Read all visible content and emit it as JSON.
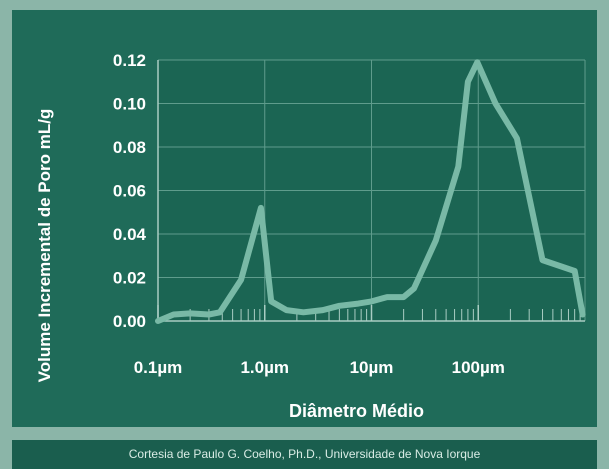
{
  "chart_data": {
    "type": "line",
    "xlabel": "Diâmetro Médio",
    "ylabel": "Volume Incremental de Poro mL/g",
    "x_scale": "log",
    "xlim": [
      0.1,
      1000
    ],
    "ylim": [
      0,
      0.12
    ],
    "y_ticks": [
      "0.00",
      "0.02",
      "0.04",
      "0.06",
      "0.08",
      "0.10",
      "0.12"
    ],
    "x_tick_labels": [
      {
        "value": 0.1,
        "label": "0.1µm"
      },
      {
        "value": 1,
        "label": "1.0µm"
      },
      {
        "value": 10,
        "label": "10µm"
      },
      {
        "value": 100,
        "label": "100µm"
      }
    ],
    "grid": true,
    "line_color": "#79b9a6",
    "points": [
      [
        0.1,
        0.0
      ],
      [
        0.14,
        0.003
      ],
      [
        0.2,
        0.0035
      ],
      [
        0.3,
        0.003
      ],
      [
        0.38,
        0.004
      ],
      [
        0.6,
        0.019
      ],
      [
        0.92,
        0.052
      ],
      [
        1.15,
        0.009
      ],
      [
        1.6,
        0.005
      ],
      [
        2.3,
        0.004
      ],
      [
        3.5,
        0.005
      ],
      [
        5,
        0.007
      ],
      [
        7.5,
        0.008
      ],
      [
        10,
        0.009
      ],
      [
        14,
        0.011
      ],
      [
        20,
        0.011
      ],
      [
        25,
        0.015
      ],
      [
        40,
        0.037
      ],
      [
        65,
        0.071
      ],
      [
        80,
        0.11
      ],
      [
        98,
        0.119
      ],
      [
        145,
        0.1
      ],
      [
        230,
        0.084
      ],
      [
        400,
        0.028
      ],
      [
        800,
        0.023
      ],
      [
        950,
        0.003
      ]
    ]
  },
  "footer": {
    "credit": "Cortesia de Paulo G. Coelho, Ph.D., Universidade de Nova Iorque"
  }
}
